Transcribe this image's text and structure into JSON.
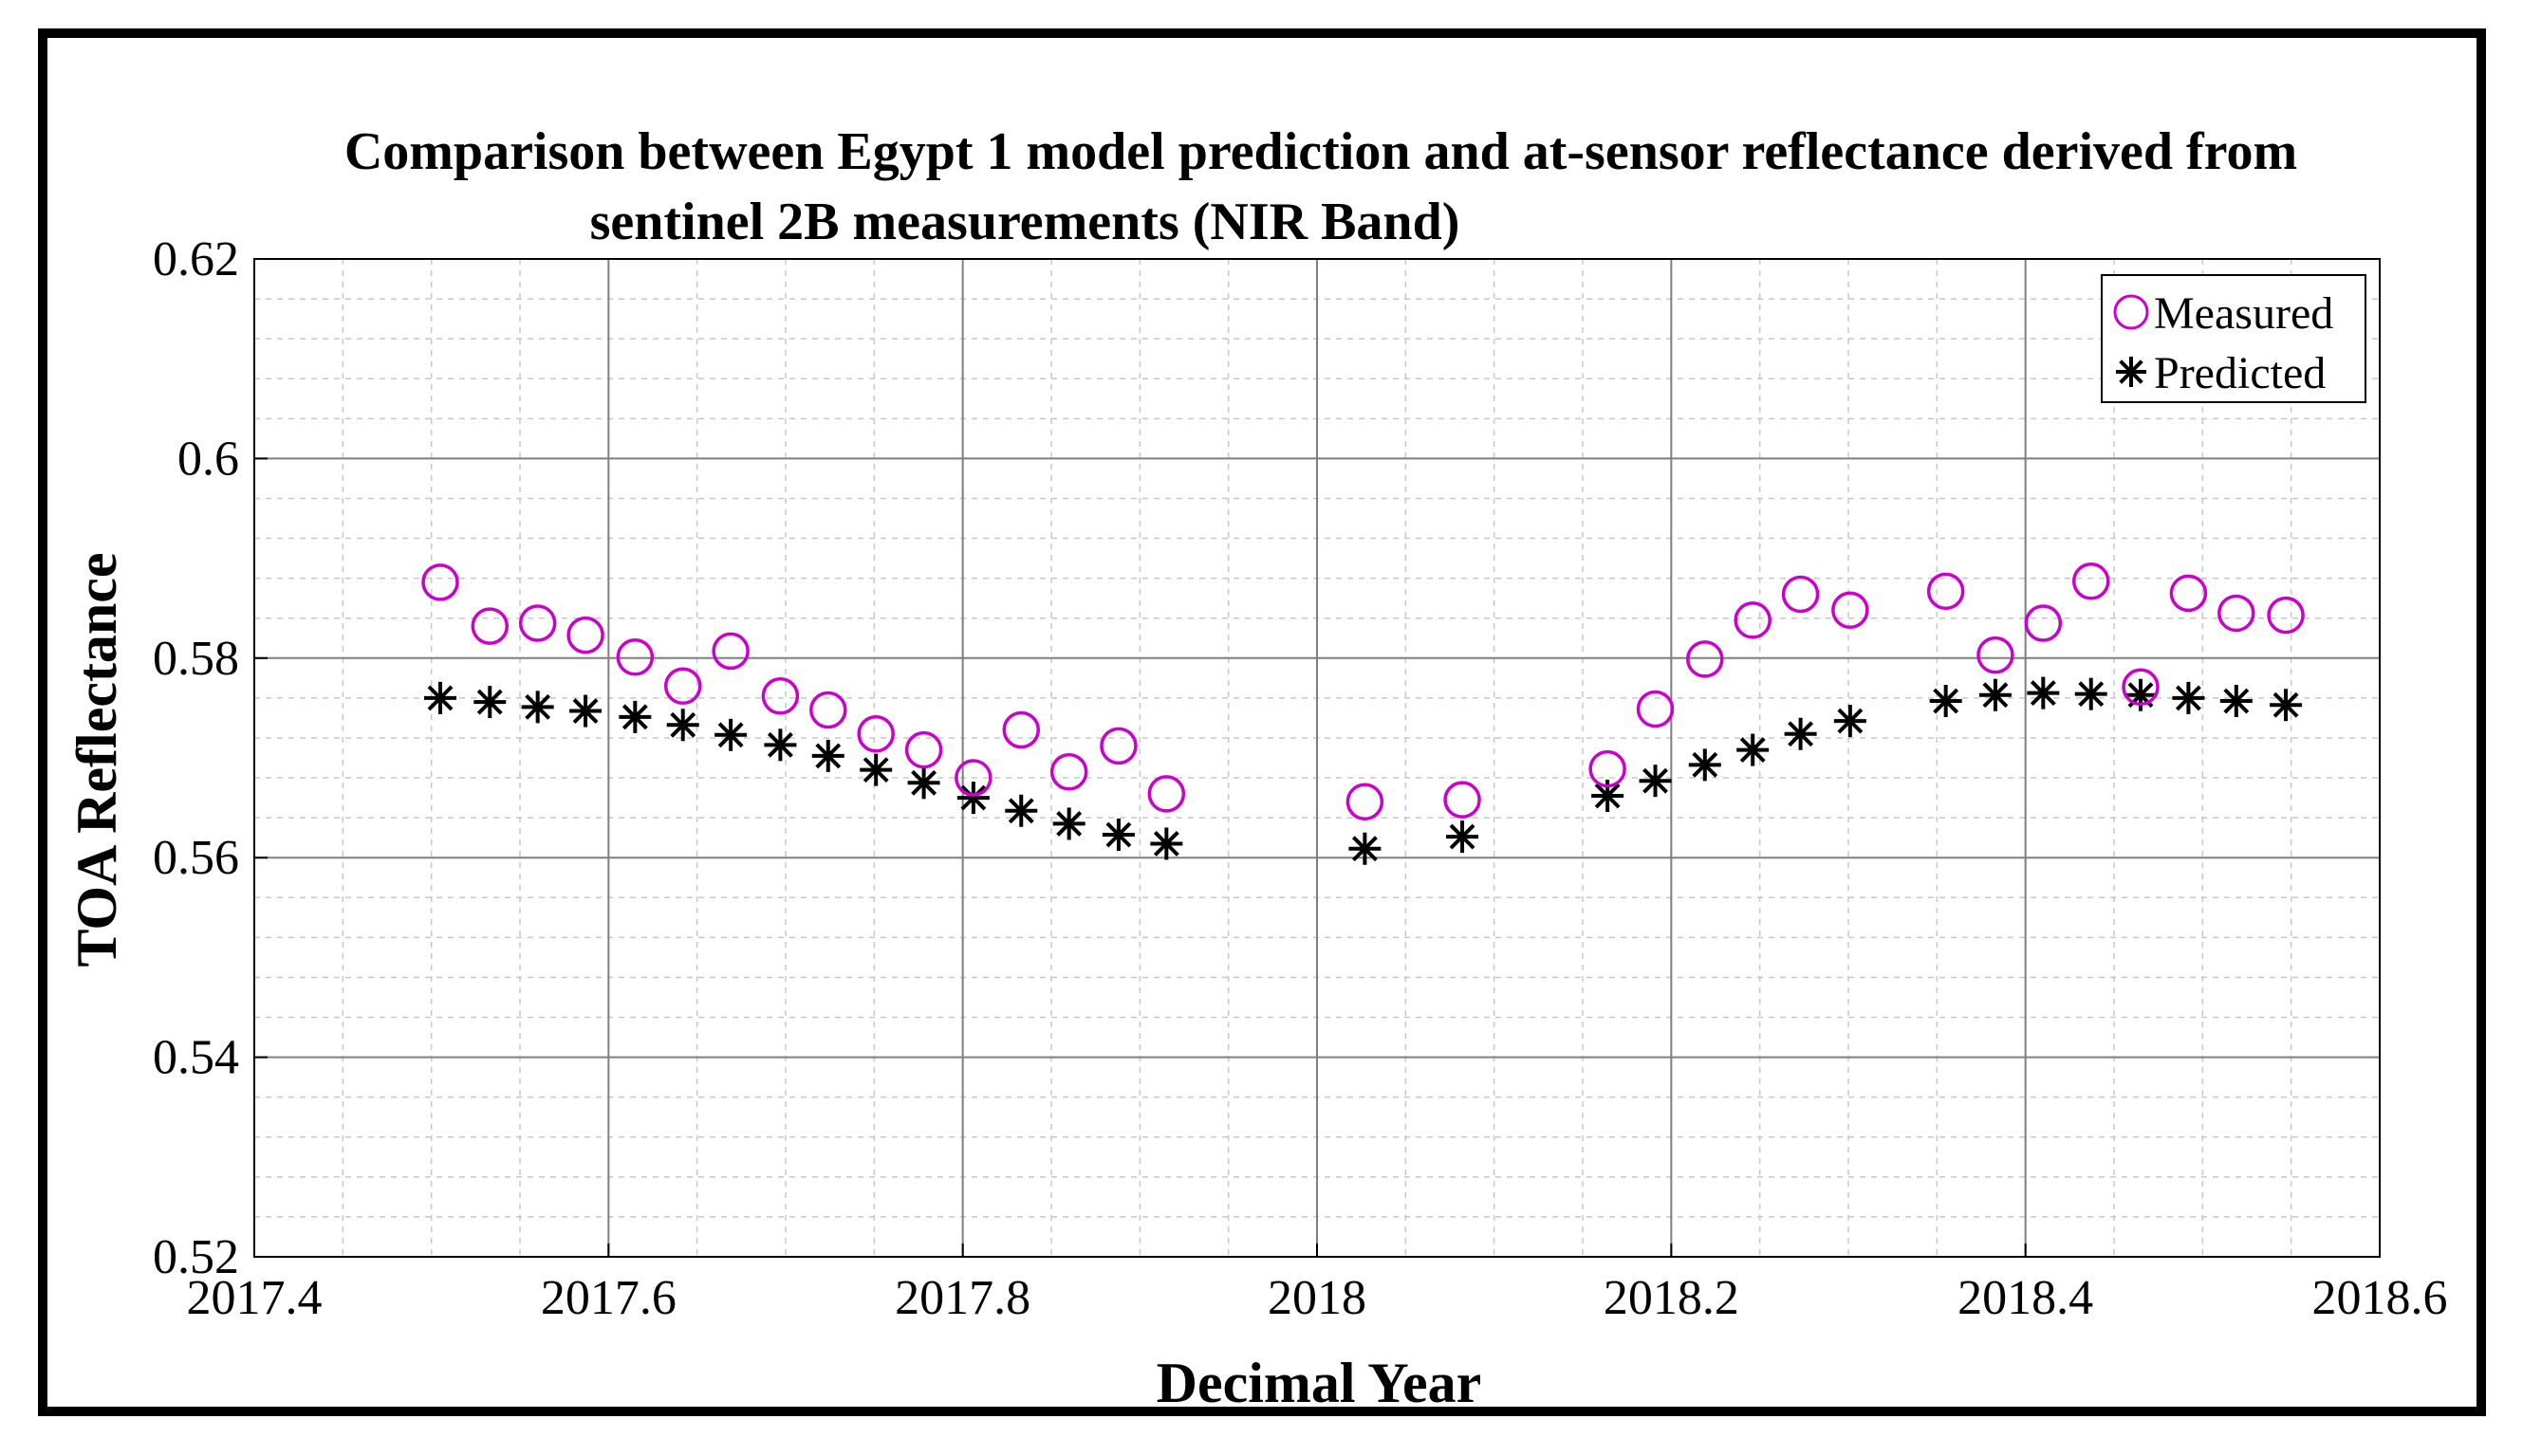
{
  "chart_data": {
    "type": "scatter",
    "title": [
      "Comparison between Egypt 1 model prediction and at-sensor reflectance derived from",
      "sentinel 2B measurements (NIR Band)"
    ],
    "xlabel": "Decimal Year",
    "ylabel": "TOA Reflectance",
    "xlim": [
      2017.4,
      2018.6
    ],
    "ylim": [
      0.52,
      0.62
    ],
    "xticks": [
      2017.4,
      2017.6,
      2017.8,
      2018,
      2018.2,
      2018.4,
      2018.6
    ],
    "xtick_labels": [
      "2017.4",
      "2017.6",
      "2017.8",
      "2018",
      "2018.2",
      "2018.4",
      "2018.6"
    ],
    "yticks": [
      0.52,
      0.54,
      0.56,
      0.58,
      0.6,
      0.62
    ],
    "ytick_labels": [
      "0.52",
      "0.54",
      "0.56",
      "0.58",
      "0.6",
      "0.62"
    ],
    "grid": true,
    "minor_grid": true,
    "legend_position": "top-right",
    "series": [
      {
        "name": "Measured",
        "marker": "circle",
        "color": "#cc00cc",
        "x": [
          2017.505,
          2017.533,
          2017.56,
          2017.587,
          2017.615,
          2017.642,
          2017.669,
          2017.697,
          2017.724,
          2017.751,
          2017.778,
          2017.806,
          2017.833,
          2017.86,
          2017.888,
          2017.915,
          2018.027,
          2018.082,
          2018.164,
          2018.191,
          2018.219,
          2018.246,
          2018.273,
          2018.301,
          2018.355,
          2018.383,
          2018.41,
          2018.437,
          2018.465,
          2018.492,
          2018.519,
          2018.547
        ],
        "y": [
          0.5876,
          0.5832,
          0.5835,
          0.5823,
          0.5801,
          0.5772,
          0.5807,
          0.5762,
          0.5748,
          0.5724,
          0.5708,
          0.568,
          0.5728,
          0.5686,
          0.5712,
          0.5664,
          0.5656,
          0.5658,
          0.5689,
          0.5749,
          0.5799,
          0.5838,
          0.5864,
          0.5848,
          0.5867,
          0.5803,
          0.5835,
          0.5877,
          0.5771,
          0.5865,
          0.5845,
          0.5843
        ]
      },
      {
        "name": "Predicted",
        "marker": "asterisk",
        "color": "#000000",
        "x": [
          2017.505,
          2017.533,
          2017.56,
          2017.587,
          2017.615,
          2017.642,
          2017.669,
          2017.697,
          2017.724,
          2017.751,
          2017.778,
          2017.806,
          2017.833,
          2017.86,
          2017.888,
          2017.915,
          2018.027,
          2018.082,
          2018.164,
          2018.191,
          2018.219,
          2018.246,
          2018.273,
          2018.301,
          2018.355,
          2018.383,
          2018.41,
          2018.437,
          2018.465,
          2018.492,
          2018.519,
          2018.547
        ],
        "y": [
          0.576,
          0.5756,
          0.5751,
          0.5747,
          0.5741,
          0.5733,
          0.5723,
          0.5713,
          0.5702,
          0.5688,
          0.5675,
          0.566,
          0.5647,
          0.5634,
          0.5623,
          0.5614,
          0.5609,
          0.5621,
          0.5662,
          0.5677,
          0.5693,
          0.5708,
          0.5724,
          0.5737,
          0.5757,
          0.5763,
          0.5765,
          0.5764,
          0.5763,
          0.576,
          0.5757,
          0.5753
        ]
      }
    ]
  }
}
